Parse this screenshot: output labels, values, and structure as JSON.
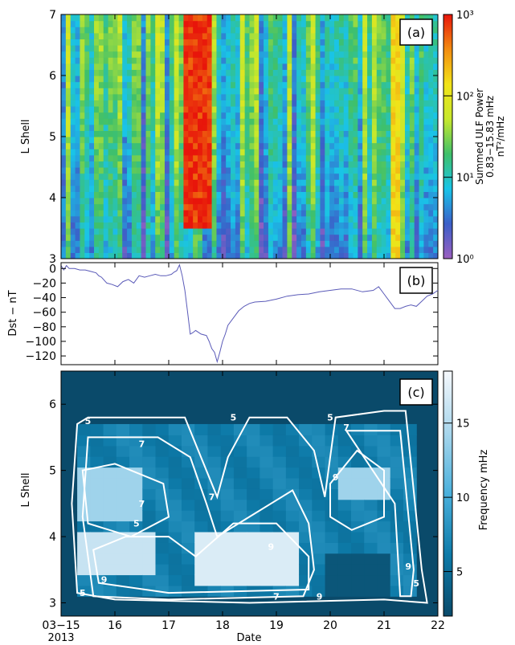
{
  "chart_data": [
    {
      "panel": "a",
      "type": "heatmap",
      "panel_label": "(a)",
      "ylabel": "L Shell",
      "ylim": [
        3,
        7
      ],
      "yticks": [
        "3",
        "4",
        "5",
        "6",
        "7"
      ],
      "xlim": [
        15,
        22
      ],
      "colorbar": {
        "title": "Summed ULF Power",
        "subtitle": "0.83−15.83 mHz",
        "units": "nT²/mHz",
        "scale": "log",
        "range": [
          1,
          1000
        ],
        "tick_labels": [
          "10⁰",
          "10¹",
          "10²",
          "10³"
        ],
        "colors": [
          "#9b5fc0",
          "#3b5fc8",
          "#19c4e8",
          "#3fc06a",
          "#c7e82c",
          "#f2e318",
          "#f28c10",
          "#e8150b"
        ]
      },
      "background_color": "#5a6fd0",
      "approx_features": [
        {
          "day_range": [
            17.3,
            17.8
          ],
          "L_range": [
            3.5,
            7.0
          ],
          "power": 1000
        },
        {
          "day_range": [
            21.1,
            21.3
          ],
          "L_range": [
            3.0,
            7.0
          ],
          "power": 200
        },
        {
          "day_range": [
            15.0,
            16.0
          ],
          "L_range": [
            3.0,
            7.0
          ],
          "power": 5
        }
      ]
    },
    {
      "panel": "b",
      "type": "line",
      "panel_label": "(b)",
      "ylabel": "Dst − nT",
      "ylim": [
        -132,
        8
      ],
      "yticks": [
        "0",
        "−20",
        "−40",
        "−60",
        "−80",
        "−100",
        "−120"
      ],
      "xlim": [
        15,
        22
      ],
      "line_color": "#5a5ab8",
      "series": [
        {
          "x": [
            15.0,
            15.05,
            15.1,
            15.15,
            15.25,
            15.35,
            15.45,
            15.55,
            15.65,
            15.7,
            15.75,
            15.85,
            15.95,
            16.05,
            16.15,
            16.25,
            16.35,
            16.45,
            16.55,
            16.65,
            16.75,
            16.85,
            16.95,
            17.05,
            17.1,
            17.15,
            17.2,
            17.25,
            17.3,
            17.35,
            17.4,
            17.45,
            17.5,
            17.6,
            17.7,
            17.75,
            17.8,
            17.85,
            17.9,
            17.95,
            18.0,
            18.05,
            18.1,
            18.2,
            18.3,
            18.4,
            18.5,
            18.6,
            18.8,
            19.0,
            19.2,
            19.4,
            19.6,
            19.8,
            20.0,
            20.2,
            20.4,
            20.6,
            20.8,
            20.9,
            21.0,
            21.1,
            21.2,
            21.3,
            21.4,
            21.5,
            21.6,
            21.7,
            21.8,
            21.9,
            22.0
          ],
          "y": [
            4,
            -2,
            4,
            0,
            0,
            -2,
            -2,
            -4,
            -6,
            -10,
            -12,
            -20,
            -22,
            -25,
            -18,
            -15,
            -20,
            -10,
            -12,
            -10,
            -8,
            -10,
            -10,
            -8,
            -5,
            -3,
            5,
            -10,
            -30,
            -60,
            -90,
            -88,
            -85,
            -90,
            -92,
            -100,
            -110,
            -115,
            -128,
            -115,
            -100,
            -90,
            -78,
            -68,
            -58,
            -52,
            -48,
            -46,
            -45,
            -42,
            -38,
            -36,
            -35,
            -32,
            -30,
            -28,
            -28,
            -32,
            -30,
            -25,
            -35,
            -45,
            -55,
            -55,
            -52,
            -50,
            -52,
            -45,
            -38,
            -35,
            -30
          ]
        }
      ]
    },
    {
      "panel": "c",
      "type": "heatmap",
      "panel_label": "(c)",
      "xlabel": "Date",
      "ylabel": "L Shell",
      "ylim": [
        2.8,
        6.5
      ],
      "yticks": [
        "3",
        "4",
        "5",
        "6"
      ],
      "xlim": [
        15,
        22
      ],
      "xticks": [
        "03−15",
        "16",
        "17",
        "18",
        "19",
        "20",
        "21",
        "22"
      ],
      "x_year_label": "2013",
      "colorbar": {
        "title": "Frequency mHz",
        "range": [
          2,
          18.5
        ],
        "tick_labels": [
          "5",
          "10",
          "15"
        ],
        "tick_values": [
          5,
          10,
          15
        ],
        "colors": [
          "#0a4a6a",
          "#0d7aa8",
          "#4ab0dc",
          "#a8d6ec",
          "#f6f8fc"
        ]
      },
      "background_color": "#0a4a6a",
      "contour_labels": [
        "5",
        "5",
        "5",
        "7",
        "7",
        "7",
        "7",
        "9",
        "9",
        "9",
        "9",
        "5",
        "7",
        "5",
        "9",
        "5"
      ],
      "approx_values": [
        {
          "day_range": [
            15.3,
            16.7
          ],
          "L_range": [
            3.5,
            4.0
          ],
          "freq": 16
        },
        {
          "day_range": [
            17.6,
            19.4
          ],
          "L_range": [
            3.2,
            4.0
          ],
          "freq": 17
        },
        {
          "day_range": [
            20.2,
            21.0
          ],
          "L_range": [
            4.5,
            5.0
          ],
          "freq": 14
        },
        {
          "day_range": [
            15.3,
            16.4
          ],
          "L_range": [
            4.3,
            5.0
          ],
          "freq": 14
        },
        {
          "day_range": [
            20.0,
            21.0
          ],
          "L_range": [
            3.1,
            3.8
          ],
          "freq": 3
        }
      ]
    }
  ]
}
